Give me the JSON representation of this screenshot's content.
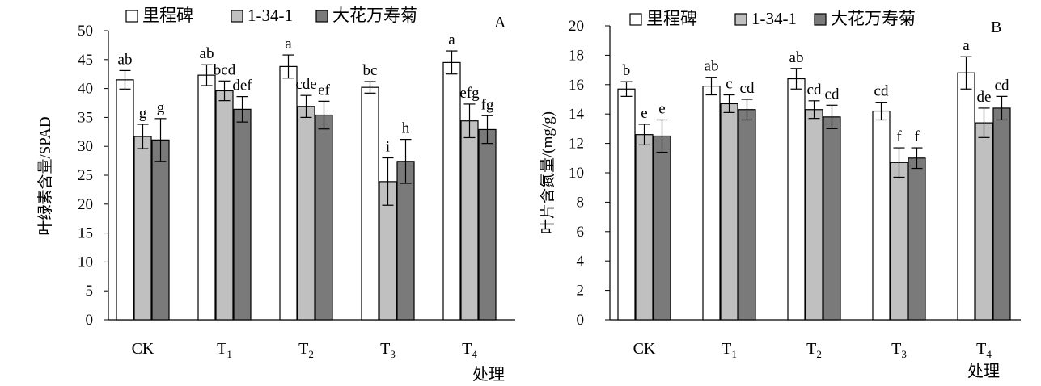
{
  "legend": [
    "里程碑",
    "1-34-1",
    "大花万寿菊"
  ],
  "colors": {
    "series1": "#ffffff",
    "series2": "#c0c0c0",
    "series3": "#7a7a7a",
    "stroke": "#000000"
  },
  "chart_data": [
    {
      "type": "bar",
      "panel": "A",
      "ylabel": "叶绿素含量/SPAD",
      "xlabel": "处理",
      "ylim": [
        0,
        50
      ],
      "yticks": [
        0,
        5,
        10,
        15,
        20,
        25,
        30,
        35,
        40,
        45,
        50
      ],
      "categories": [
        {
          "main": "CK",
          "sub": ""
        },
        {
          "main": "T",
          "sub": "1"
        },
        {
          "main": "T",
          "sub": "2"
        },
        {
          "main": "T",
          "sub": "3"
        },
        {
          "main": "T",
          "sub": "4"
        }
      ],
      "legend_position": "top",
      "series": [
        {
          "name": "里程碑",
          "values": [
            41.5,
            42.3,
            43.8,
            40.2,
            44.5
          ],
          "errors": [
            1.6,
            1.8,
            2.0,
            1.0,
            2.0
          ],
          "letters": [
            "ab",
            "ab",
            "a",
            "bc",
            "a"
          ]
        },
        {
          "name": "1-34-1",
          "values": [
            31.7,
            39.6,
            36.9,
            23.9,
            34.4
          ],
          "errors": [
            2.1,
            1.7,
            1.9,
            4.1,
            2.9
          ],
          "letters": [
            "g",
            "bcd",
            "cde",
            "i",
            "efg"
          ]
        },
        {
          "name": "大花万寿菊",
          "values": [
            31.1,
            36.4,
            35.4,
            27.4,
            32.9
          ],
          "errors": [
            3.7,
            2.2,
            2.4,
            3.8,
            2.4
          ],
          "letters": [
            "g",
            "def",
            "ef",
            "h",
            "fg"
          ]
        }
      ]
    },
    {
      "type": "bar",
      "panel": "B",
      "ylabel": "叶片含氮量/(mg/g)",
      "xlabel": "处理",
      "ylim": [
        0,
        20
      ],
      "yticks": [
        0,
        2,
        4,
        6,
        8,
        10,
        12,
        14,
        16,
        18,
        20
      ],
      "categories": [
        {
          "main": "CK",
          "sub": ""
        },
        {
          "main": "T",
          "sub": "1"
        },
        {
          "main": "T",
          "sub": "2"
        },
        {
          "main": "T",
          "sub": "3"
        },
        {
          "main": "T",
          "sub": "4"
        }
      ],
      "legend_position": "top",
      "series": [
        {
          "name": "里程碑",
          "values": [
            15.7,
            15.9,
            16.4,
            14.2,
            16.8
          ],
          "errors": [
            0.5,
            0.6,
            0.7,
            0.6,
            1.1
          ],
          "letters": [
            "b",
            "ab",
            "ab",
            "cd",
            "a"
          ]
        },
        {
          "name": "1-34-1",
          "values": [
            12.6,
            14.7,
            14.3,
            10.7,
            13.4
          ],
          "errors": [
            0.7,
            0.6,
            0.6,
            1.0,
            1.0
          ],
          "letters": [
            "e",
            "c",
            "cd",
            "f",
            "de"
          ]
        },
        {
          "name": "大花万寿菊",
          "values": [
            12.5,
            14.3,
            13.8,
            11.0,
            14.4
          ],
          "errors": [
            1.1,
            0.7,
            0.8,
            0.7,
            0.8
          ],
          "letters": [
            "e",
            "cd",
            "cd",
            "f",
            "cd"
          ]
        }
      ]
    }
  ]
}
